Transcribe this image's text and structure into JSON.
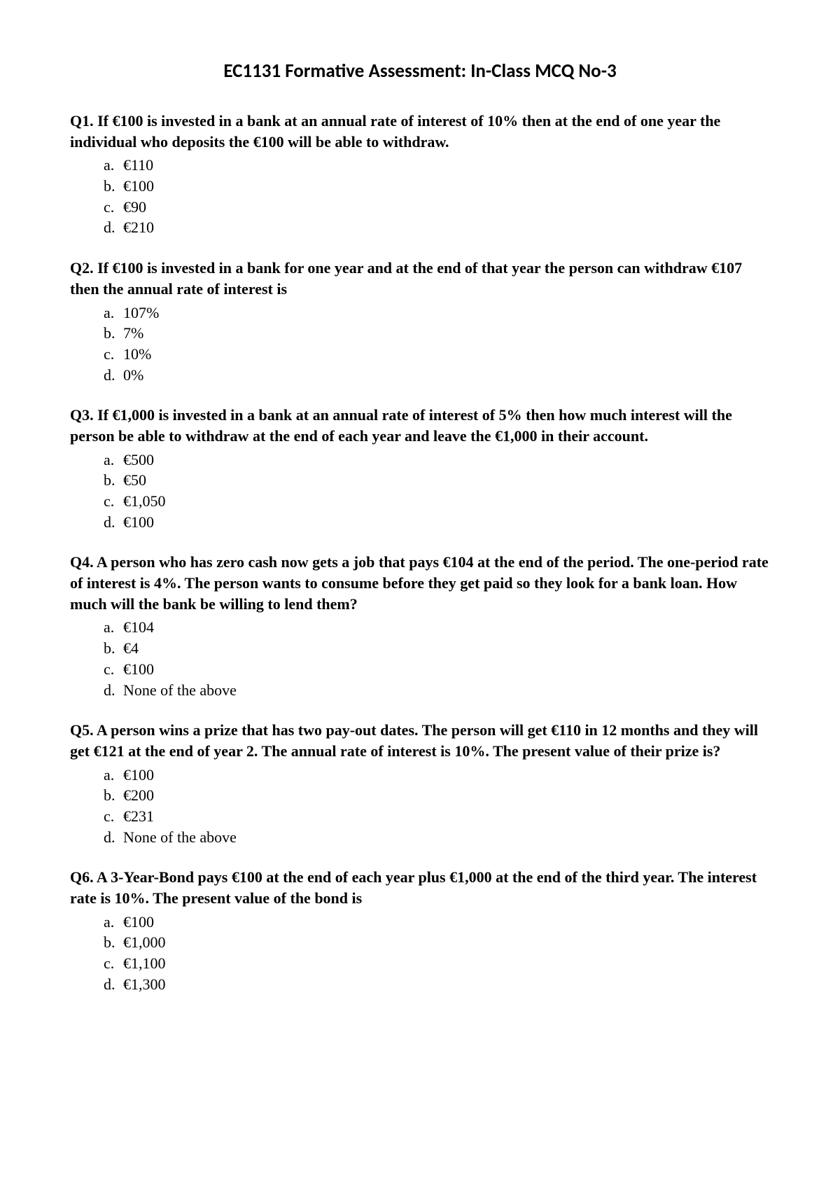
{
  "title": "EC1131 Formative Assessment: In-Class MCQ No-3",
  "questions": [
    {
      "label": "Q1.",
      "text": "If €100 is invested in a bank at an annual rate of interest of 10% then at the end of one year the individual who deposits the €100 will be able to withdraw.",
      "options": [
        {
          "letter": "a.",
          "text": "€110"
        },
        {
          "letter": "b.",
          "text": "€100"
        },
        {
          "letter": "c.",
          "text": "€90"
        },
        {
          "letter": "d.",
          "text": "€210"
        }
      ]
    },
    {
      "label": "Q2.",
      "text": "If €100 is invested in a bank for one year and at the end of that year the person can withdraw €107 then the annual rate of interest is",
      "options": [
        {
          "letter": "a.",
          "text": "107%"
        },
        {
          "letter": "b.",
          "text": "7%"
        },
        {
          "letter": "c.",
          "text": "10%"
        },
        {
          "letter": "d.",
          "text": "0%"
        }
      ]
    },
    {
      "label": "Q3.",
      "text": "If €1,000 is invested in a bank at an annual rate of interest of 5% then how much interest will the person be able to withdraw at the end of each year and leave the €1,000 in their account.",
      "options": [
        {
          "letter": "a.",
          "text": "€500"
        },
        {
          "letter": "b.",
          "text": "€50"
        },
        {
          "letter": "c.",
          "text": "€1,050"
        },
        {
          "letter": "d.",
          "text": "€100"
        }
      ]
    },
    {
      "label": "Q4.",
      "text": "A person who has zero cash now gets a job that pays €104 at the end of the period.  The one-period rate of interest is 4%.  The person wants to consume before they get paid so they look for a bank loan.  How much will the bank be willing to lend them?",
      "options": [
        {
          "letter": "a.",
          "text": "€104"
        },
        {
          "letter": "b.",
          "text": "€4"
        },
        {
          "letter": "c.",
          "text": "€100"
        },
        {
          "letter": "d.",
          "text": "None of the above"
        }
      ]
    },
    {
      "label": "Q5.",
      "text": "A person wins a prize that has two pay-out dates.  The person will get €110 in 12 months and they will get €121 at the end of year 2.  The annual rate of interest is 10%.  The present value of their prize is?",
      "options": [
        {
          "letter": "a.",
          "text": "€100"
        },
        {
          "letter": "b.",
          "text": "€200"
        },
        {
          "letter": "c.",
          "text": "€231"
        },
        {
          "letter": "d.",
          "text": "None of the above"
        }
      ]
    },
    {
      "label": "Q6.",
      "text": "A 3-Year-Bond pays €100 at the end of each year plus €1,000 at the end of the third year.  The interest rate is 10%.  The present value of the bond is",
      "options": [
        {
          "letter": "a.",
          "text": "€100"
        },
        {
          "letter": "b.",
          "text": "€1,000"
        },
        {
          "letter": "c.",
          "text": "€1,100"
        },
        {
          "letter": "d.",
          "text": "€1,300"
        }
      ]
    }
  ]
}
